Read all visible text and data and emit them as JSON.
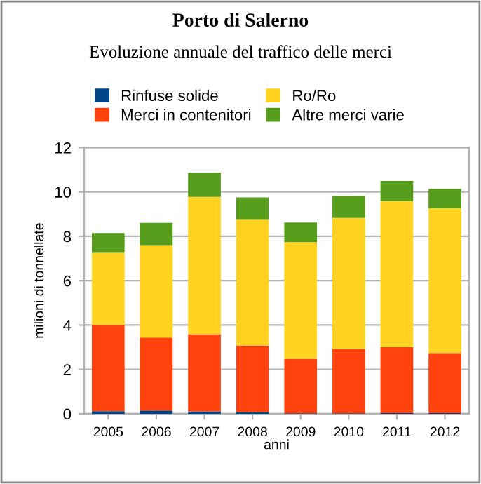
{
  "chart_data": {
    "type": "bar",
    "title": "Porto di Salerno",
    "subtitle": "Evoluzione annuale del traffico delle merci",
    "xlabel": "anni",
    "ylabel": "milioni di tonnellate",
    "categories": [
      "2005",
      "2006",
      "2007",
      "2008",
      "2009",
      "2010",
      "2011",
      "2012"
    ],
    "stacked": true,
    "series": [
      {
        "name": "Rinfuse solide",
        "color": "#004586",
        "values": [
          0.12,
          0.15,
          0.1,
          0.08,
          0.02,
          0.02,
          0.03,
          0.03
        ]
      },
      {
        "name": "Merci in contenitori",
        "color": "#ff420e",
        "values": [
          3.88,
          3.29,
          3.49,
          3.0,
          2.46,
          2.9,
          2.98,
          2.71
        ]
      },
      {
        "name": "Ro/Ro",
        "color": "#ffd320",
        "values": [
          3.29,
          4.16,
          6.19,
          5.69,
          5.26,
          5.91,
          6.57,
          6.52
        ]
      },
      {
        "name": "Altre merci varie",
        "color": "#579d1c",
        "values": [
          0.86,
          1.01,
          1.09,
          0.98,
          0.88,
          0.99,
          0.92,
          0.88
        ]
      }
    ],
    "ylim": [
      0,
      12
    ],
    "yticks": [
      0,
      2,
      4,
      6,
      8,
      10,
      12
    ],
    "grid": "y",
    "legend": "top"
  }
}
